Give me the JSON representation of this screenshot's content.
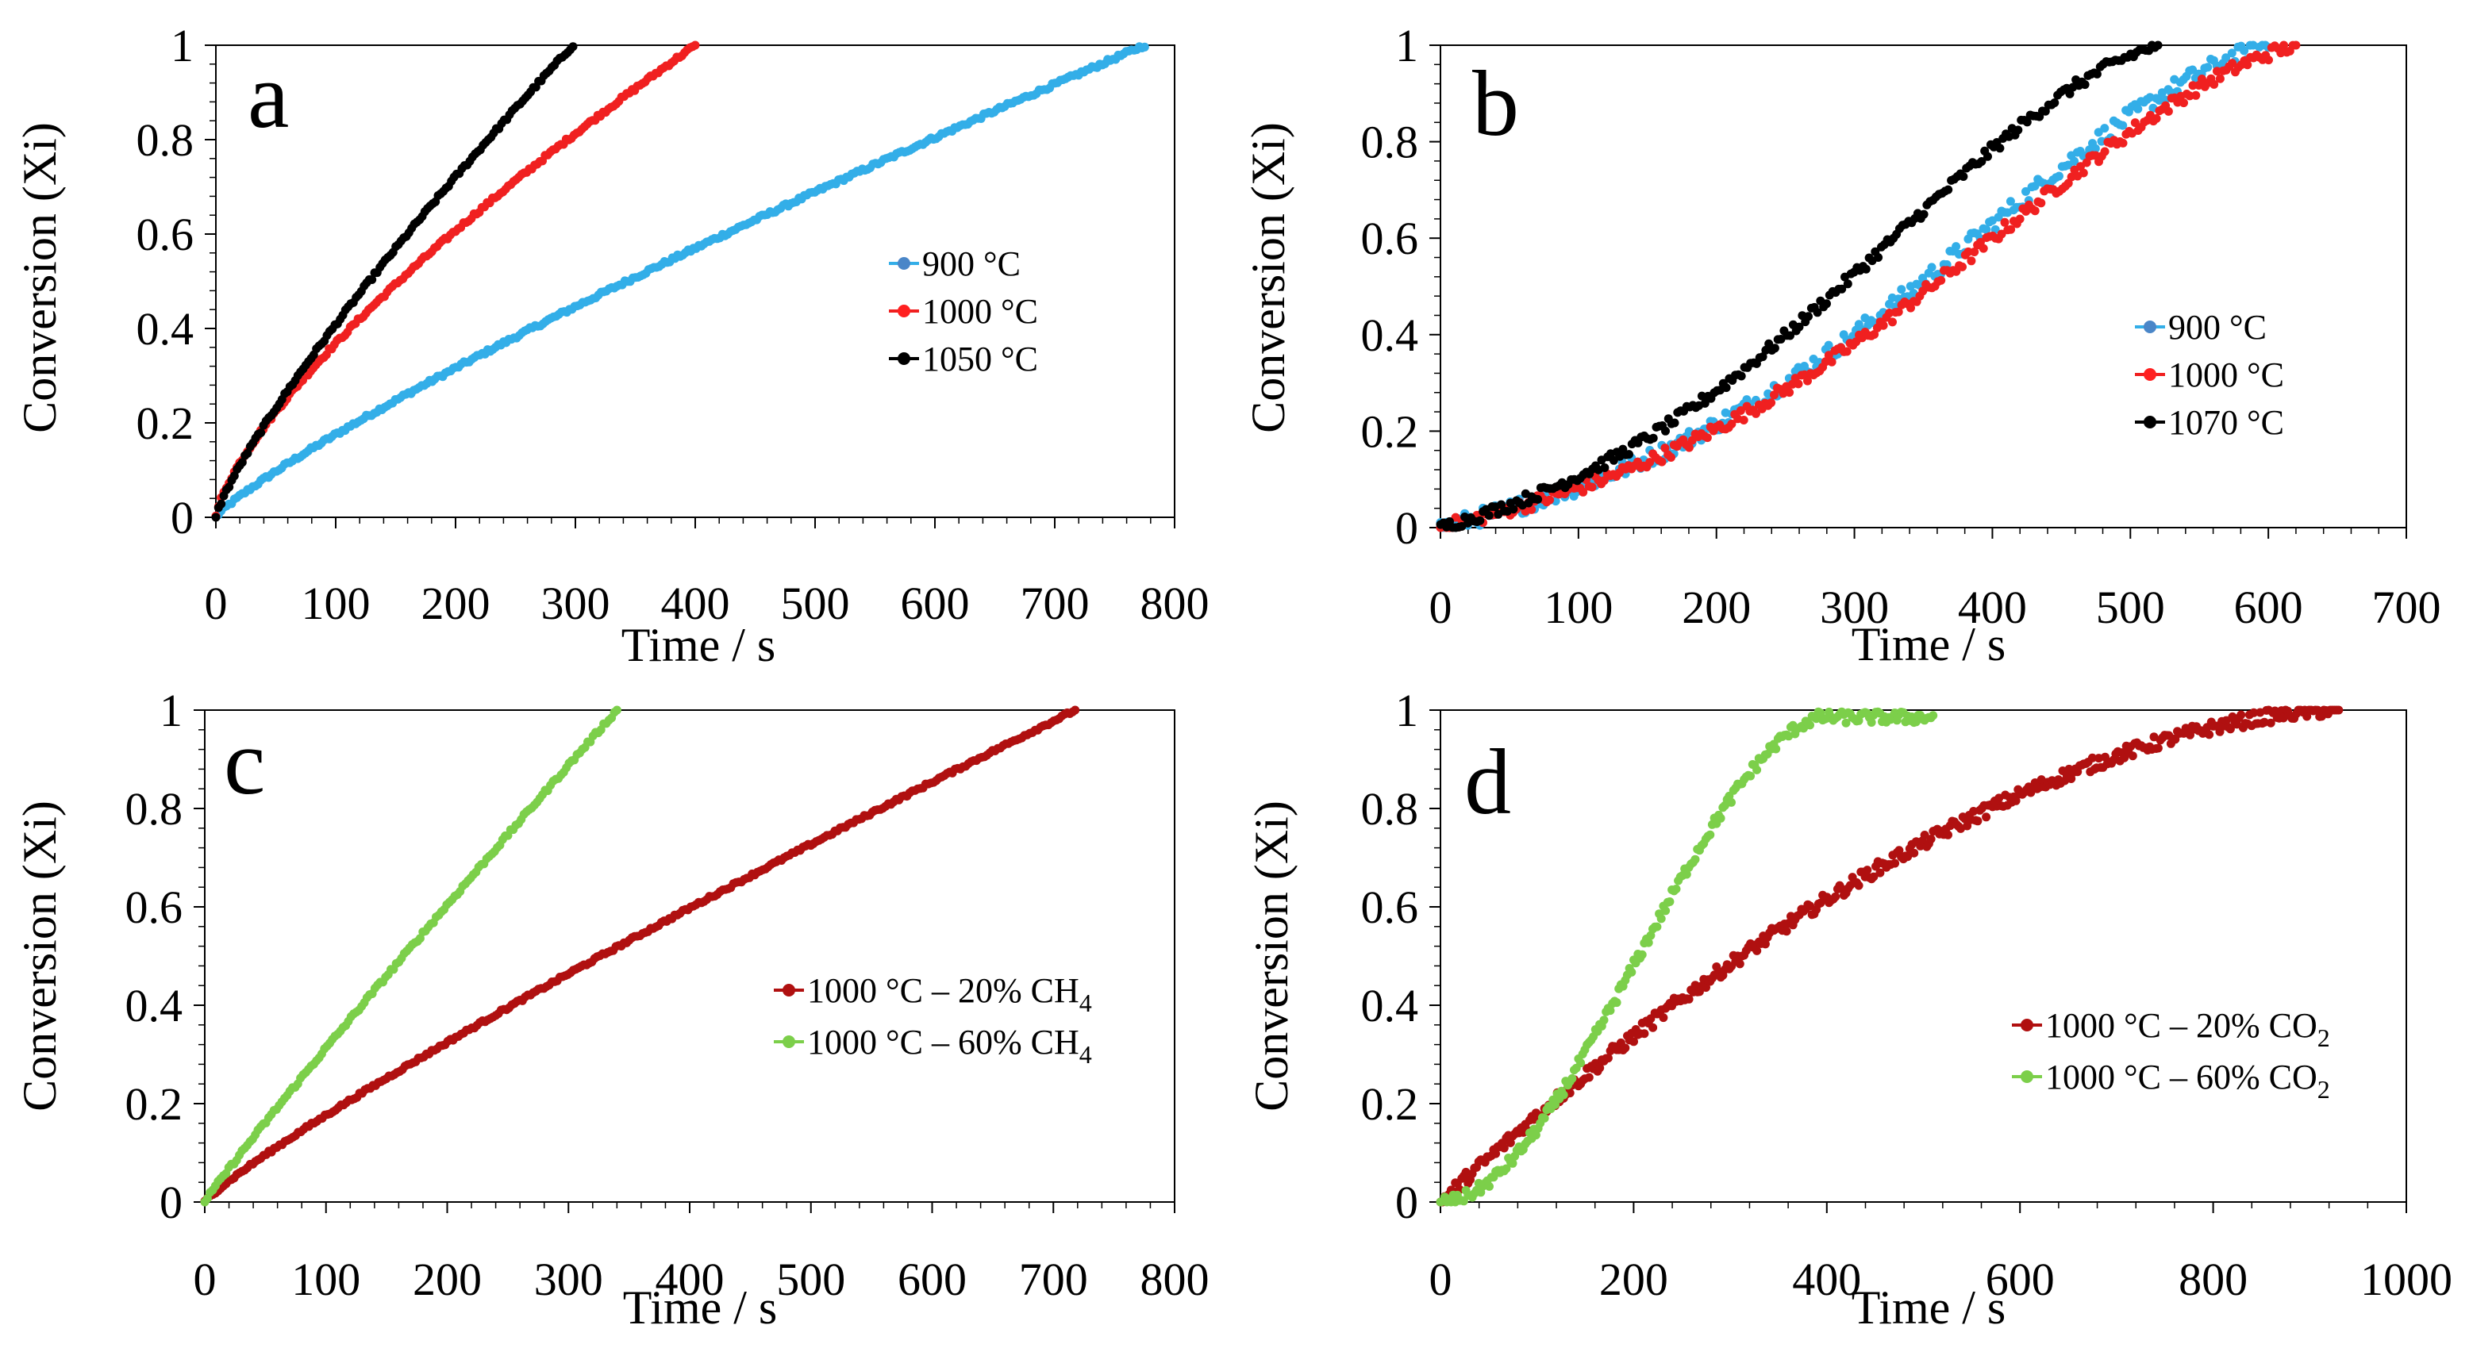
{
  "chart_data": [
    {
      "panel": "a",
      "type": "scatter",
      "title": "",
      "xlabel": "Time / s",
      "ylabel": "Conversion (Xi)",
      "xlim": [
        0,
        800
      ],
      "ylim": [
        0,
        1
      ],
      "xticks": [
        "0",
        "100",
        "200",
        "300",
        "400",
        "500",
        "600",
        "700",
        "800"
      ],
      "yticks": [
        "0",
        "0.2",
        "0.4",
        "0.6",
        "0.8",
        "1"
      ],
      "grid": false,
      "legend_position": "center-right",
      "series": [
        {
          "name": "900 °C",
          "legend_marker": "#4a86c8",
          "color": "#33aee8",
          "end_time": 775,
          "shape": "concave",
          "exponent": 0.85,
          "noise": 0.004
        },
        {
          "name": "1000 °C",
          "legend_marker": "#ff2020",
          "color": "#f02020",
          "end_time": 400,
          "shape": "concave",
          "exponent": 0.72,
          "noise": 0.004
        },
        {
          "name": "1050 °C",
          "legend_marker": "#000000",
          "color": "#000000",
          "end_time": 298,
          "shape": "concave",
          "exponent": 0.82,
          "noise": 0.004
        }
      ]
    },
    {
      "panel": "b",
      "type": "scatter",
      "title": "",
      "xlabel": "Time / s",
      "ylabel": "Conversion (Xi)",
      "xlim": [
        0,
        700
      ],
      "ylim": [
        0,
        1
      ],
      "xticks": [
        "0",
        "100",
        "200",
        "300",
        "400",
        "500",
        "600",
        "700"
      ],
      "yticks": [
        "0",
        "0.2",
        "0.4",
        "0.6",
        "0.8",
        "1"
      ],
      "grid": false,
      "legend_position": "center-right",
      "series": [
        {
          "name": "900 °C",
          "legend_marker": "#4a86c8",
          "color": "#33aee8",
          "end_time": 600,
          "shape": "sigmoid",
          "exponent": 1.4,
          "noise": 0.018
        },
        {
          "name": "1000 °C",
          "legend_marker": "#ff2020",
          "color": "#f02020",
          "end_time": 620,
          "shape": "sigmoid",
          "exponent": 1.4,
          "noise": 0.014
        },
        {
          "name": "1070 °C",
          "legend_marker": "#000000",
          "color": "#000000",
          "end_time": 520,
          "shape": "sigmoid",
          "exponent": 1.3,
          "noise": 0.012
        }
      ]
    },
    {
      "panel": "c",
      "type": "scatter",
      "title": "",
      "xlabel": "Time / s",
      "ylabel": "Conversion (Xi)",
      "xlim": [
        0,
        800
      ],
      "ylim": [
        0,
        1
      ],
      "xticks": [
        "0",
        "100",
        "200",
        "300",
        "400",
        "500",
        "600",
        "700",
        "800"
      ],
      "yticks": [
        "0",
        "0.2",
        "0.4",
        "0.6",
        "0.8",
        "1"
      ],
      "grid": false,
      "legend_position": "center-right",
      "series": [
        {
          "name": "1000 °C – 20% CH",
          "subscript": "4",
          "legend_marker": "#b01010",
          "color": "#b01010",
          "end_time": 718,
          "shape": "concave",
          "exponent": 0.88,
          "noise": 0.003
        },
        {
          "name": "1000 °C – 60% CH",
          "subscript": "4",
          "legend_marker": "#7ccf4a",
          "color": "#7ccf4a",
          "end_time": 340,
          "shape": "concave",
          "exponent": 0.95,
          "noise": 0.004
        }
      ]
    },
    {
      "panel": "d",
      "type": "scatter",
      "title": "",
      "xlabel": "Time / s",
      "ylabel": "Conversion (Xi)",
      "xlim": [
        0,
        1000
      ],
      "ylim": [
        0,
        1
      ],
      "xticks": [
        "0",
        "200",
        "400",
        "600",
        "800",
        "1000"
      ],
      "yticks": [
        "0",
        "0.2",
        "0.4",
        "0.6",
        "0.8",
        "1"
      ],
      "grid": false,
      "legend_position": "center-right",
      "series": [
        {
          "name": "1000 °C – 20% CO",
          "subscript": "2",
          "legend_marker": "#b01010",
          "color": "#b01010",
          "end_time": 930,
          "shape": "saturating",
          "exponent": 1.0,
          "noise": 0.014
        },
        {
          "name": "1000 °C – 60% CO",
          "subscript": "2",
          "legend_marker": "#7ccf4a",
          "color": "#7ccf4a",
          "end_time": 510,
          "shape": "sigmoid-plateau",
          "exponent": 1.6,
          "noise": 0.012
        }
      ]
    }
  ]
}
